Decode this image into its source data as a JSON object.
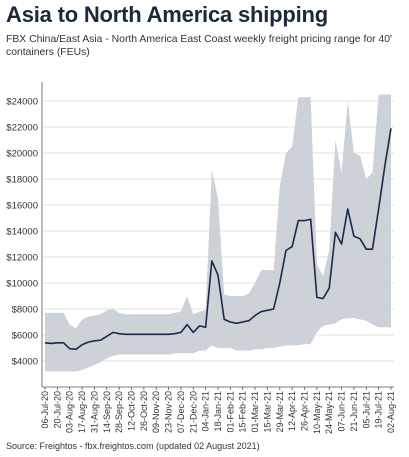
{
  "title": "Asia to North America shipping",
  "subtitle": "FBX China/East Asia - North America East Coast weekly freight pricing range for 40' containers (FEUs)",
  "source": "Source: Freightos - fbx.freightos.com (updated 02 August 2021)",
  "colors": {
    "band": "#ccd2d8",
    "line": "#1b2a4a",
    "grid": "#d9d9d9",
    "axis": "#555555"
  },
  "chart_data": {
    "type": "area",
    "xlabel": "",
    "ylabel": "",
    "ylim": [
      2000,
      25000
    ],
    "yticks": [
      4000,
      6000,
      8000,
      10000,
      12000,
      14000,
      16000,
      18000,
      20000,
      22000,
      24000
    ],
    "ytick_labels": [
      "$4000",
      "$6000",
      "$8000",
      "$10000",
      "$12000",
      "$14000",
      "$16000",
      "$18000",
      "$20000",
      "$22000",
      "$24000"
    ],
    "xtick_labels": [
      "06-Jul-20",
      "20-Jul-20",
      "03-Aug-20",
      "17-Aug-20",
      "31-Aug-20",
      "14-Sep-20",
      "28-Sep-20",
      "12-Oct-20",
      "26-Oct-20",
      "09-Nov-20",
      "23-Nov-20",
      "07-Dec-20",
      "21-Dec-20",
      "04-Jan-21",
      "18-Jan-21",
      "01-Feb-21",
      "15-Feb-21",
      "01-Mar-21",
      "15-Mar-21",
      "29-Mar-21",
      "12-Apr-21",
      "26-Apr-21",
      "10-May-21",
      "24-May-21",
      "07-Jun-21",
      "21-Jun-21",
      "05-Jul-21",
      "19-Jul-21",
      "02-Aug-21"
    ],
    "grid": true,
    "series": [
      {
        "values": [
          5400,
          5350,
          5400,
          5400,
          4950,
          4900,
          5250,
          5450,
          5550,
          5600,
          5900,
          6200,
          6100,
          6050,
          6050,
          6050,
          6050,
          6050,
          6050,
          6050,
          6050,
          6100,
          6200,
          6800,
          6200,
          6700,
          6600,
          11700,
          10600,
          7200,
          7000,
          6900,
          7000,
          7100,
          7500,
          7800,
          7900,
          8000,
          10000,
          12500,
          12800,
          14800,
          14800,
          14900,
          8900,
          8800,
          9600,
          13900,
          13000,
          15700,
          13600,
          13400,
          12600,
          12600,
          15700,
          19000,
          21900
        ]
      },
      {
        "values": [
          7700,
          7700,
          7700,
          7700,
          6800,
          6500,
          7200,
          7400,
          7500,
          7600,
          7900,
          8000,
          7700,
          7600,
          7600,
          7600,
          7600,
          7600,
          7600,
          7600,
          7600,
          7700,
          7800,
          9000,
          7600,
          7800,
          7900,
          18700,
          16500,
          9100,
          9000,
          9000,
          9000,
          9200,
          10000,
          11000,
          11000,
          11000,
          17400,
          20000,
          20500,
          24300,
          24300,
          24300,
          11500,
          10500,
          12500,
          21000,
          18500,
          24000,
          20000,
          19800,
          18000,
          18500,
          24500,
          24500,
          24500
        ]
      },
      {
        "values": [
          3200,
          3200,
          3200,
          3200,
          3200,
          3200,
          3300,
          3500,
          3700,
          3900,
          4200,
          4400,
          4500,
          4500,
          4500,
          4500,
          4500,
          4500,
          4500,
          4500,
          4500,
          4600,
          4600,
          4600,
          4600,
          4800,
          4800,
          5200,
          5000,
          5000,
          5000,
          4800,
          4800,
          4800,
          4900,
          4900,
          5000,
          5000,
          5100,
          5200,
          5200,
          5200,
          5300,
          5300,
          6200,
          6700,
          6800,
          6900,
          7200,
          7300,
          7300,
          7200,
          7100,
          6800,
          6600,
          6600,
          6600
        ]
      }
    ]
  }
}
